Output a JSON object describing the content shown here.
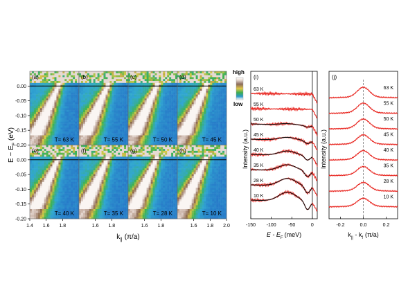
{
  "colors": {
    "edc": "#e8251f",
    "fit": "#111111",
    "dashed": "#777777"
  },
  "colorbar": {
    "high": "high",
    "low": "low"
  },
  "chart_data": [
    {
      "type": "heatmap",
      "xlabel": "k",
      "xlabel_sub": "∥",
      "xlabel_unit": "(π/a)",
      "ylabel": "E − E",
      "ylabel_sub": "F",
      "ylabel_unit": "(eV)",
      "xlim": [
        1.4,
        2.0
      ],
      "ylim": [
        -0.2,
        0.05
      ],
      "x_ticks": [
        "1.4",
        "1.6",
        "1.8",
        "2.0"
      ],
      "y_ticks": [
        "0.00",
        "-0.05",
        "-0.10",
        "-0.15",
        "-0.20"
      ],
      "panels": [
        {
          "id": "(a)",
          "temp": "T= 63 K",
          "kF": 1.75
        },
        {
          "id": "(b)",
          "temp": "T= 55 K",
          "kF": 1.75
        },
        {
          "id": "(c)",
          "temp": "T= 50 K",
          "kF": 1.75
        },
        {
          "id": "(d)",
          "temp": "T= 45 K",
          "kF": 1.75
        },
        {
          "id": "(e)",
          "temp": "T= 40 K",
          "kF": 1.74
        },
        {
          "id": "(f)",
          "temp": "T= 35 K",
          "kF": 1.74
        },
        {
          "id": "(g)",
          "temp": "T= 28 K",
          "kF": 1.74
        },
        {
          "id": "(h)",
          "temp": "T= 10 K",
          "kF": 1.74
        }
      ]
    },
    {
      "type": "line",
      "panel": "(i)",
      "xlabel": "E - E",
      "xlabel_sub": "F",
      "xlabel_unit": "(meV)",
      "ylabel": "Intensity (a.u.)",
      "xlim": [
        -150,
        12
      ],
      "x_ticks": [
        "-150",
        "-100",
        "-50",
        "0"
      ],
      "series": [
        {
          "name": "63 K",
          "fit": false
        },
        {
          "name": "55 K",
          "fit": false
        },
        {
          "name": "50 K",
          "fit": true
        },
        {
          "name": "45 K",
          "fit": true
        },
        {
          "name": "40 K",
          "fit": true
        },
        {
          "name": "35 K",
          "fit": true
        },
        {
          "name": "28 K",
          "fit": true
        },
        {
          "name": "10 K",
          "fit": true
        }
      ]
    },
    {
      "type": "line",
      "panel": "(j)",
      "xlabel": "k",
      "xlabel_sub1": "||",
      "xlabel_mid": " - k",
      "xlabel_sub2": "f",
      "xlabel_unit": "(π/a)",
      "ylabel": "Intensity (a.u.)",
      "xlim": [
        -0.3,
        0.3
      ],
      "x_ticks": [
        "-0.2",
        "0.0",
        "0.2"
      ],
      "series": [
        {
          "name": "63 K"
        },
        {
          "name": "55 K"
        },
        {
          "name": "50 K"
        },
        {
          "name": "45 K"
        },
        {
          "name": "40 K"
        },
        {
          "name": "35 K"
        },
        {
          "name": "28 K"
        },
        {
          "name": "10 K"
        }
      ]
    }
  ]
}
